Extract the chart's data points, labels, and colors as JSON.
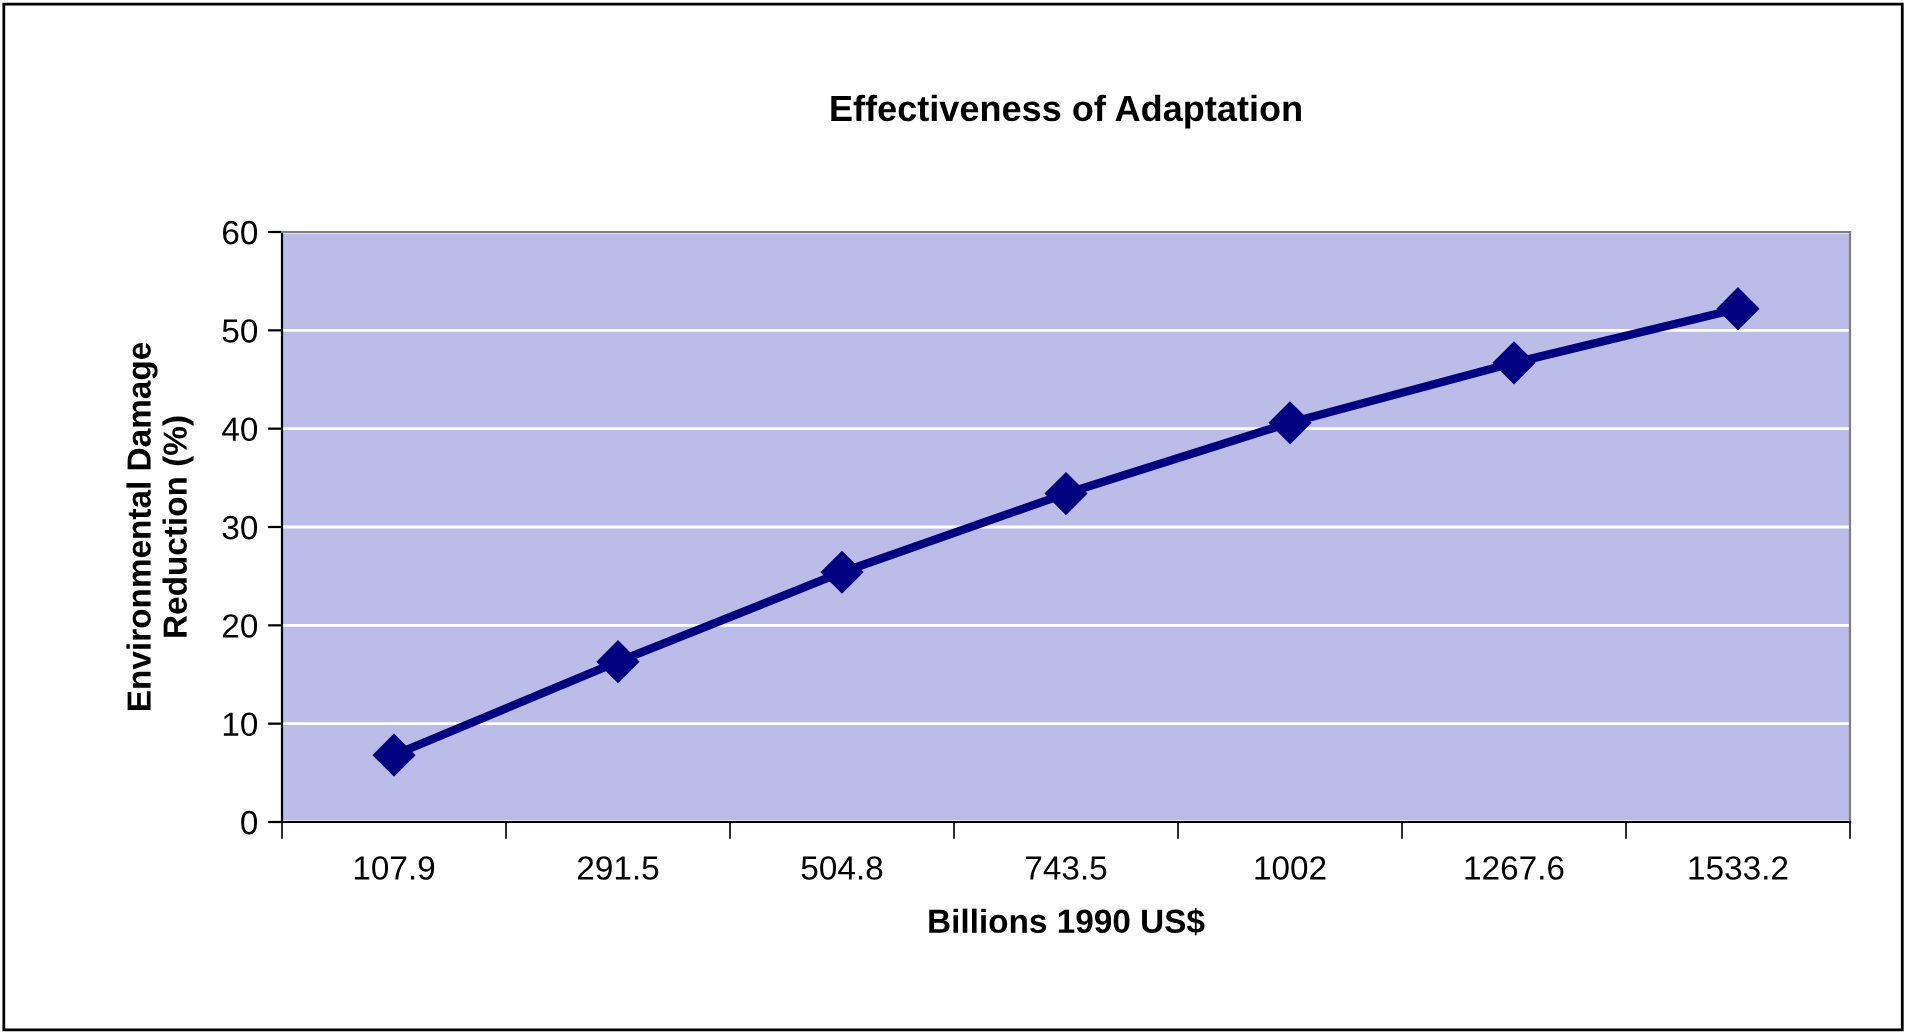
{
  "chart_data": {
    "type": "line",
    "title": "Effectiveness of Adaptation",
    "xlabel": "Billions 1990 US$",
    "ylabel": "Environmental Damage\nReduction (%)",
    "categories": [
      "107.9",
      "291.5",
      "504.8",
      "743.5",
      "1002",
      "1267.6",
      "1533.2"
    ],
    "series": [
      {
        "color": "#000080",
        "values": [
          6.8,
          16.3,
          25.4,
          33.4,
          40.6,
          46.7,
          52.2
        ]
      }
    ],
    "ylim": [
      0,
      60
    ],
    "yticks": [
      0,
      10,
      20,
      30,
      40,
      50,
      60
    ],
    "grid": "y",
    "marker": "diamond",
    "line_style": "solid",
    "legend": false
  }
}
